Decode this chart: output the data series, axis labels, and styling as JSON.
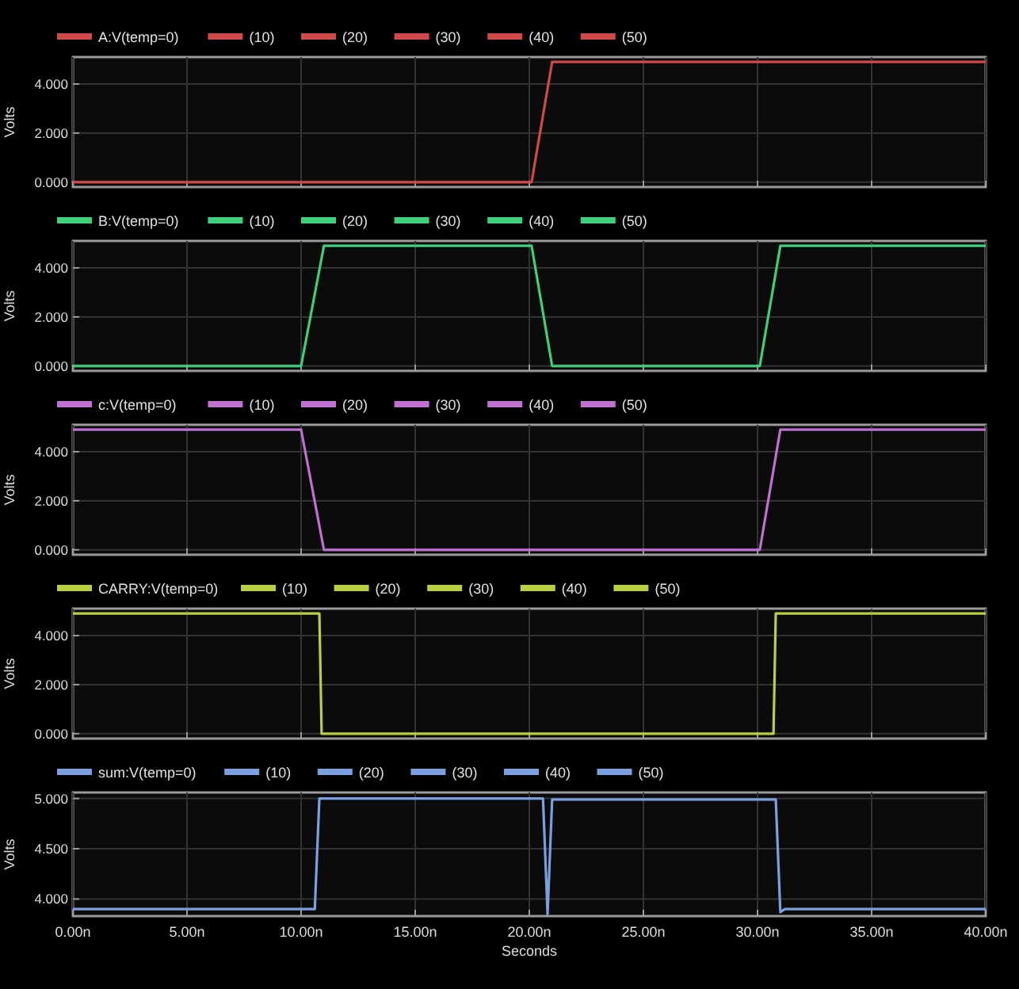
{
  "chart_data": [
    {
      "type": "line",
      "ylabel": "Volts",
      "legend": "top",
      "grid": true,
      "tick_labels": "y",
      "line_style": "solid",
      "xlim": [
        0,
        40
      ],
      "xticks": [
        {
          "value": 0,
          "label": null
        },
        {
          "value": 5,
          "label": null
        },
        {
          "value": 10,
          "label": null
        },
        {
          "value": 15,
          "label": null
        },
        {
          "value": 20,
          "label": null
        },
        {
          "value": 25,
          "label": null
        },
        {
          "value": 30,
          "label": null
        },
        {
          "value": 35,
          "label": null
        },
        {
          "value": 40,
          "label": null
        }
      ],
      "ylim": [
        -0.2,
        5.1
      ],
      "yticks": [
        {
          "value": 0,
          "label": "0.000"
        },
        {
          "value": 2,
          "label": "2.000"
        },
        {
          "value": 4,
          "label": "4.000"
        }
      ],
      "x": [
        0,
        20.1,
        21,
        40
      ],
      "series": [
        {
          "name": "A:V(temp=0)",
          "color": "#d04a4a",
          "values": [
            0,
            0,
            4.9,
            4.9
          ]
        },
        {
          "name": "(10)",
          "color": "#d04a4a",
          "values": [
            null,
            null,
            null,
            null
          ]
        },
        {
          "name": "(20)",
          "color": "#d04a4a",
          "values": [
            null,
            null,
            null,
            null
          ]
        },
        {
          "name": "(30)",
          "color": "#d04a4a",
          "values": [
            null,
            null,
            null,
            null
          ]
        },
        {
          "name": "(40)",
          "color": "#d04a4a",
          "values": [
            null,
            null,
            null,
            null
          ]
        },
        {
          "name": "(50)",
          "color": "#d04a4a",
          "values": [
            null,
            null,
            null,
            null
          ]
        }
      ]
    },
    {
      "type": "line",
      "ylabel": "Volts",
      "legend": "top",
      "grid": true,
      "tick_labels": "y",
      "line_style": "solid",
      "xlim": [
        0,
        40
      ],
      "xticks": [
        {
          "value": 0,
          "label": null
        },
        {
          "value": 5,
          "label": null
        },
        {
          "value": 10,
          "label": null
        },
        {
          "value": 15,
          "label": null
        },
        {
          "value": 20,
          "label": null
        },
        {
          "value": 25,
          "label": null
        },
        {
          "value": 30,
          "label": null
        },
        {
          "value": 35,
          "label": null
        },
        {
          "value": 40,
          "label": null
        }
      ],
      "ylim": [
        -0.2,
        5.1
      ],
      "yticks": [
        {
          "value": 0,
          "label": "0.000"
        },
        {
          "value": 2,
          "label": "2.000"
        },
        {
          "value": 4,
          "label": "4.000"
        }
      ],
      "x": [
        0,
        10,
        11,
        20.1,
        21,
        30.1,
        31,
        40
      ],
      "series": [
        {
          "name": "B:V(temp=0)",
          "color": "#3ecf7a",
          "values": [
            0,
            0,
            4.9,
            4.9,
            0,
            0,
            4.9,
            4.9
          ]
        },
        {
          "name": "(10)",
          "color": "#3ecf7a",
          "values": [
            null,
            null,
            null,
            null,
            null,
            null,
            null,
            null
          ]
        },
        {
          "name": "(20)",
          "color": "#3ecf7a",
          "values": [
            null,
            null,
            null,
            null,
            null,
            null,
            null,
            null
          ]
        },
        {
          "name": "(30)",
          "color": "#3ecf7a",
          "values": [
            null,
            null,
            null,
            null,
            null,
            null,
            null,
            null
          ]
        },
        {
          "name": "(40)",
          "color": "#3ecf7a",
          "values": [
            null,
            null,
            null,
            null,
            null,
            null,
            null,
            null
          ]
        },
        {
          "name": "(50)",
          "color": "#3ecf7a",
          "values": [
            null,
            null,
            null,
            null,
            null,
            null,
            null,
            null
          ]
        }
      ]
    },
    {
      "type": "line",
      "ylabel": "Volts",
      "legend": "top",
      "grid": true,
      "tick_labels": "y",
      "line_style": "solid",
      "xlim": [
        0,
        40
      ],
      "xticks": [
        {
          "value": 0,
          "label": null
        },
        {
          "value": 5,
          "label": null
        },
        {
          "value": 10,
          "label": null
        },
        {
          "value": 15,
          "label": null
        },
        {
          "value": 20,
          "label": null
        },
        {
          "value": 25,
          "label": null
        },
        {
          "value": 30,
          "label": null
        },
        {
          "value": 35,
          "label": null
        },
        {
          "value": 40,
          "label": null
        }
      ],
      "ylim": [
        -0.2,
        5.1
      ],
      "yticks": [
        {
          "value": 0,
          "label": "0.000"
        },
        {
          "value": 2,
          "label": "2.000"
        },
        {
          "value": 4,
          "label": "4.000"
        }
      ],
      "x": [
        0,
        10,
        11,
        30.1,
        31,
        40
      ],
      "series": [
        {
          "name": "c:V(temp=0)",
          "color": "#c070d0",
          "values": [
            4.9,
            4.9,
            0,
            0,
            4.9,
            4.9
          ]
        },
        {
          "name": "(10)",
          "color": "#c070d0",
          "values": [
            null,
            null,
            null,
            null,
            null,
            null
          ]
        },
        {
          "name": "(20)",
          "color": "#c070d0",
          "values": [
            null,
            null,
            null,
            null,
            null,
            null
          ]
        },
        {
          "name": "(30)",
          "color": "#c070d0",
          "values": [
            null,
            null,
            null,
            null,
            null,
            null
          ]
        },
        {
          "name": "(40)",
          "color": "#c070d0",
          "values": [
            null,
            null,
            null,
            null,
            null,
            null
          ]
        },
        {
          "name": "(50)",
          "color": "#c070d0",
          "values": [
            null,
            null,
            null,
            null,
            null,
            null
          ]
        }
      ]
    },
    {
      "type": "line",
      "ylabel": "Volts",
      "legend": "top",
      "grid": true,
      "tick_labels": "y",
      "line_style": "solid",
      "xlim": [
        0,
        40
      ],
      "xticks": [
        {
          "value": 0,
          "label": null
        },
        {
          "value": 5,
          "label": null
        },
        {
          "value": 10,
          "label": null
        },
        {
          "value": 15,
          "label": null
        },
        {
          "value": 20,
          "label": null
        },
        {
          "value": 25,
          "label": null
        },
        {
          "value": 30,
          "label": null
        },
        {
          "value": 35,
          "label": null
        },
        {
          "value": 40,
          "label": null
        }
      ],
      "ylim": [
        -0.2,
        5.1
      ],
      "yticks": [
        {
          "value": 0,
          "label": "0.000"
        },
        {
          "value": 2,
          "label": "2.000"
        },
        {
          "value": 4,
          "label": "4.000"
        }
      ],
      "x": [
        0,
        10.8,
        10.9,
        30.7,
        30.8,
        40
      ],
      "series": [
        {
          "name": "CARRY:V(temp=0)",
          "color": "#b8d040",
          "values": [
            4.9,
            4.9,
            0,
            0,
            4.9,
            4.9
          ]
        },
        {
          "name": "(10)",
          "color": "#b8d040",
          "values": [
            null,
            null,
            null,
            null,
            null,
            null
          ]
        },
        {
          "name": "(20)",
          "color": "#b8d040",
          "values": [
            null,
            null,
            null,
            null,
            null,
            null
          ]
        },
        {
          "name": "(30)",
          "color": "#b8d040",
          "values": [
            null,
            null,
            null,
            null,
            null,
            null
          ]
        },
        {
          "name": "(40)",
          "color": "#b8d040",
          "values": [
            null,
            null,
            null,
            null,
            null,
            null
          ]
        },
        {
          "name": "(50)",
          "color": "#b8d040",
          "values": [
            null,
            null,
            null,
            null,
            null,
            null
          ]
        }
      ]
    },
    {
      "type": "line",
      "ylabel": "Volts",
      "xlabel": "Seconds",
      "legend": "top",
      "grid": true,
      "line_style": "solid",
      "xlim": [
        0,
        40
      ],
      "xticks": [
        {
          "value": 0,
          "label": "0.00n"
        },
        {
          "value": 5,
          "label": "5.00n"
        },
        {
          "value": 10,
          "label": "10.00n"
        },
        {
          "value": 15,
          "label": "15.00n"
        },
        {
          "value": 20,
          "label": "20.00n"
        },
        {
          "value": 25,
          "label": "25.00n"
        },
        {
          "value": 30,
          "label": "30.00n"
        },
        {
          "value": 35,
          "label": "35.00n"
        },
        {
          "value": 40,
          "label": "40.00n"
        }
      ],
      "ylim": [
        3.83,
        5.06
      ],
      "yticks": [
        {
          "value": 4,
          "label": "4.000"
        },
        {
          "value": 4.5,
          "label": "4.500"
        },
        {
          "value": 5,
          "label": "5.000"
        }
      ],
      "x": [
        0,
        10.6,
        10.8,
        20.6,
        20.8,
        21,
        30.8,
        31,
        31.2,
        40
      ],
      "series": [
        {
          "name": "sum:V(temp=0)",
          "color": "#7aa0e0",
          "values": [
            3.9,
            3.9,
            5,
            5,
            3.85,
            4.99,
            4.99,
            3.87,
            3.9,
            3.9
          ]
        },
        {
          "name": "(10)",
          "color": "#7aa0e0",
          "values": [
            null,
            null,
            null,
            null,
            null,
            null,
            null,
            null,
            null,
            null
          ]
        },
        {
          "name": "(20)",
          "color": "#7aa0e0",
          "values": [
            null,
            null,
            null,
            null,
            null,
            null,
            null,
            null,
            null,
            null
          ]
        },
        {
          "name": "(30)",
          "color": "#7aa0e0",
          "values": [
            null,
            null,
            null,
            null,
            null,
            null,
            null,
            null,
            null,
            null
          ]
        },
        {
          "name": "(40)",
          "color": "#7aa0e0",
          "values": [
            null,
            null,
            null,
            null,
            null,
            null,
            null,
            null,
            null,
            null
          ]
        },
        {
          "name": "(50)",
          "color": "#7aa0e0",
          "values": [
            null,
            null,
            null,
            null,
            null,
            null,
            null,
            null,
            null,
            null
          ]
        }
      ]
    }
  ]
}
